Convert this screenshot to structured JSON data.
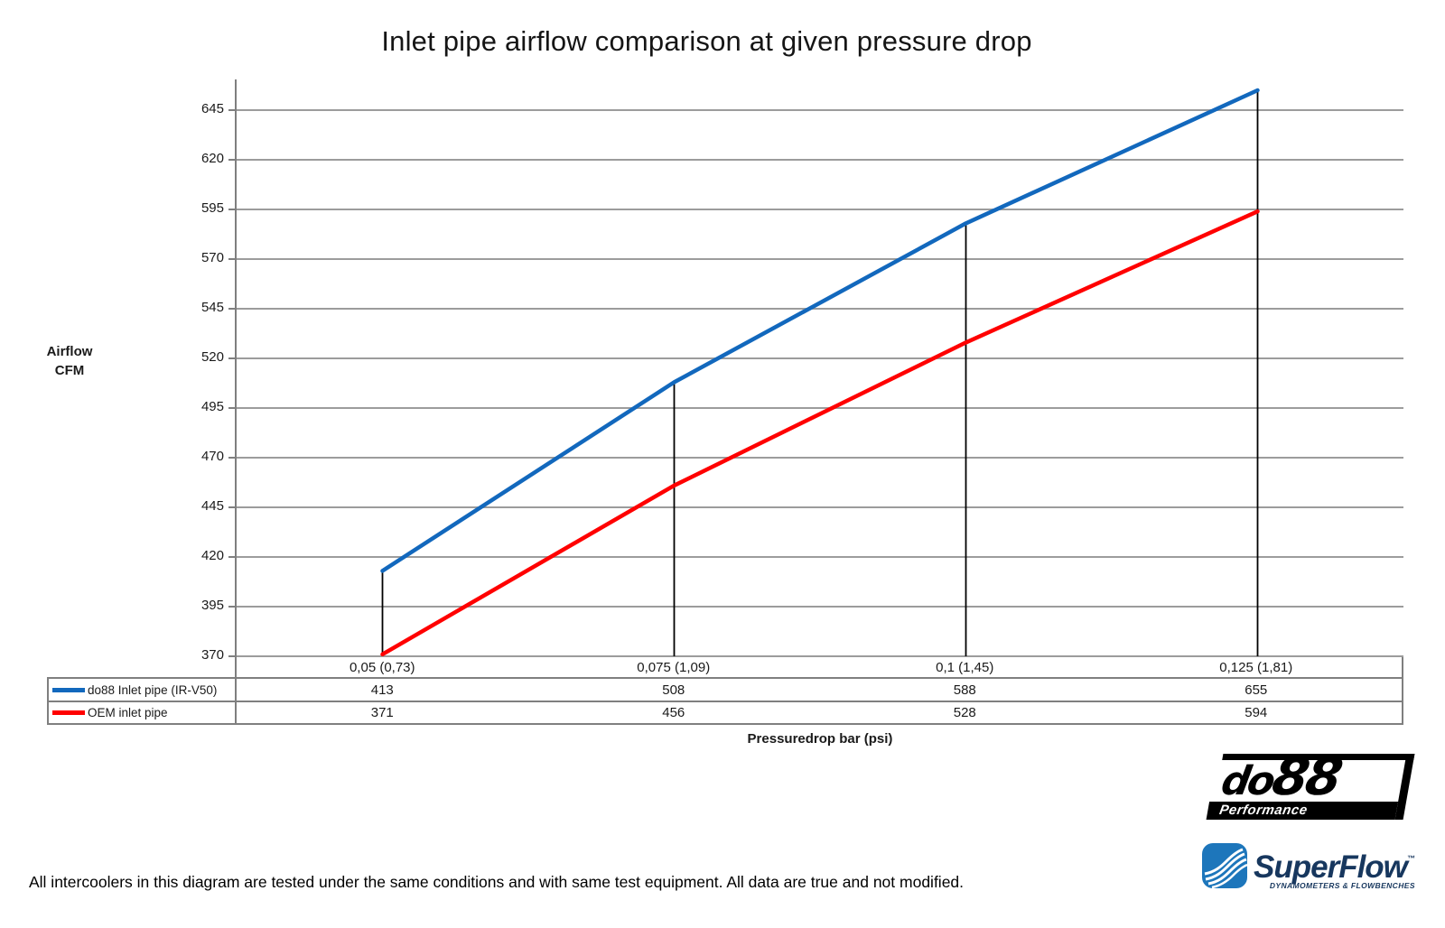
{
  "title": "Inlet pipe airflow comparison at given pressure drop",
  "y_axis": {
    "label_line1": "Airflow",
    "label_line2": "CFM",
    "ticks": [
      645,
      620,
      595,
      570,
      545,
      520,
      495,
      470,
      445,
      420,
      395,
      370
    ]
  },
  "x_axis": {
    "label": "Pressuredrop bar (psi)"
  },
  "chart_data": {
    "type": "line",
    "title": "Inlet pipe airflow comparison at given pressure drop",
    "xlabel": "Pressuredrop bar (psi)",
    "ylabel": "Airflow CFM",
    "categories": [
      "0,05 (0,73)",
      "0,075 (1,09)",
      "0,1 (1,45)",
      "0,125 (1,81)"
    ],
    "series": [
      {
        "name": "do88 Inlet pipe (IR-V50)",
        "color": "#1268bd",
        "values": [
          413,
          508,
          588,
          655
        ]
      },
      {
        "name": "OEM inlet pipe",
        "color": "#ff0000",
        "values": [
          371,
          456,
          528,
          594
        ]
      }
    ],
    "ylim": [
      370,
      661
    ],
    "yticks": [
      370,
      395,
      420,
      445,
      470,
      495,
      520,
      545,
      570,
      595,
      620,
      645
    ],
    "grid": true,
    "legend_position": "table-left",
    "drop_lines_at_points": true
  },
  "colors": {
    "grid": "#9c9c9c",
    "axis": "#7f7f7f",
    "drop_line": "#000000",
    "do88_series": "#1268bd",
    "oem_series": "#ff0000",
    "superflow_blue": "#1d76bb",
    "superflow_navy": "#17375e"
  },
  "footnote": "All intercoolers in this diagram are tested under the same conditions and with same test equipment. All data are true and not modified.",
  "logos": {
    "do88": {
      "name_do": "do",
      "name_88": "88",
      "tagline": "Performance"
    },
    "superflow": {
      "name": "SuperFlow",
      "tm": "™",
      "tagline": "DYNAMOMETERS & FLOWBENCHES"
    }
  }
}
